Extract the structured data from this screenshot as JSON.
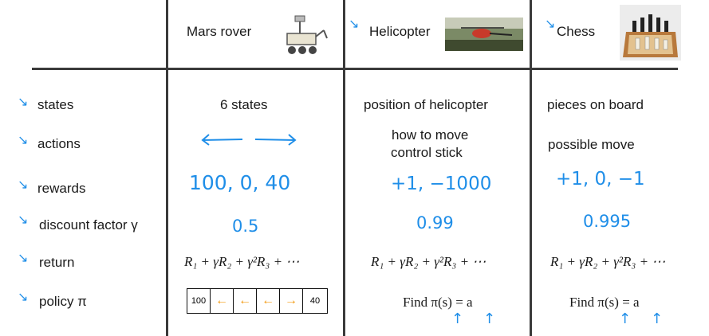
{
  "columns": {
    "mars": {
      "title": "Mars rover"
    },
    "heli": {
      "title": "Helicopter"
    },
    "chess": {
      "title": "Chess"
    }
  },
  "rows": {
    "states": "states",
    "actions": "actions",
    "rewards": "rewards",
    "discount": "discount factor γ",
    "return": "return",
    "policy": "policy π"
  },
  "mars": {
    "states": "6 states",
    "rewards": "100, 0, 40",
    "discount": "0.5",
    "return": "R₁ + γR₂ + γ²R₃ + ⋯",
    "policy_grid": [
      "100",
      "←",
      "←",
      "←",
      "→",
      "40"
    ]
  },
  "heli": {
    "states": "position of helicopter",
    "actions_line1": "how to move",
    "actions_line2": "control stick",
    "rewards": "+1, −1000",
    "discount": "0.99",
    "return": "R₁ + γR₂ + γ²R₃ + ⋯",
    "policy": "Find π(s) = a"
  },
  "chess": {
    "states": "pieces on board",
    "actions": "possible move",
    "rewards": "+1, 0, −1",
    "discount": "0.995",
    "return": "R₁ + γR₂ + γ²R₃ + ⋯",
    "policy": "Find π(s) = a"
  },
  "colors": {
    "annotation": "#1f8ee8",
    "grid_arrow": "#f29a12"
  }
}
